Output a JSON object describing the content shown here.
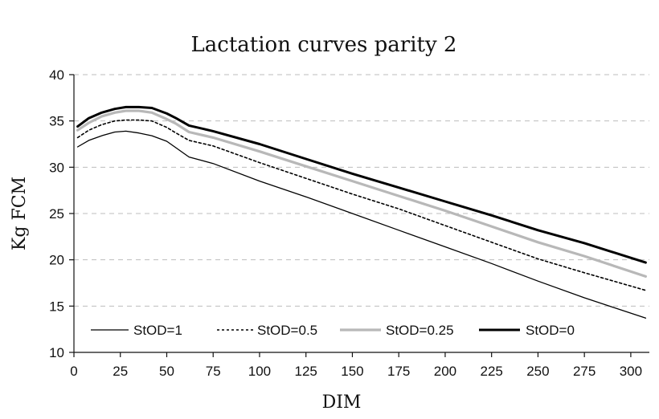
{
  "chart_data": {
    "type": "line",
    "title": "Lactation curves parity 2",
    "xlabel": "DIM",
    "ylabel": "Kg FCM",
    "xlim": [
      0,
      310
    ],
    "ylim": [
      10,
      40
    ],
    "xticks": [
      0,
      25,
      50,
      75,
      100,
      125,
      150,
      175,
      200,
      225,
      250,
      275,
      300
    ],
    "yticks": [
      10,
      15,
      20,
      25,
      30,
      35,
      40
    ],
    "grid": true,
    "legend_position": "bottom",
    "series": [
      {
        "name": "StOD=1",
        "style": "thin-solid",
        "color": "#000000",
        "x": [
          2,
          8,
          15,
          22,
          28,
          35,
          42,
          50,
          55,
          62,
          75,
          100,
          125,
          150,
          175,
          200,
          225,
          250,
          275,
          308
        ],
        "y": [
          32.2,
          32.9,
          33.4,
          33.8,
          33.9,
          33.7,
          33.4,
          32.8,
          32.1,
          31.1,
          30.4,
          28.5,
          26.8,
          25.0,
          23.2,
          21.4,
          19.6,
          17.7,
          15.9,
          13.7
        ]
      },
      {
        "name": "StOD=0.5",
        "style": "dotted",
        "color": "#000000",
        "x": [
          2,
          8,
          15,
          22,
          28,
          35,
          42,
          50,
          55,
          62,
          75,
          100,
          125,
          150,
          175,
          200,
          225,
          250,
          275,
          308
        ],
        "y": [
          33.2,
          34.0,
          34.6,
          35.0,
          35.1,
          35.1,
          35.0,
          34.3,
          33.7,
          32.9,
          32.3,
          30.5,
          28.8,
          27.1,
          25.5,
          23.7,
          21.9,
          20.1,
          18.6,
          16.7
        ]
      },
      {
        "name": "StOD=0.25",
        "style": "thick-gray",
        "color": "#b8b8b8",
        "x": [
          2,
          8,
          15,
          22,
          28,
          35,
          42,
          50,
          55,
          62,
          75,
          100,
          125,
          150,
          175,
          200,
          225,
          250,
          275,
          308
        ],
        "y": [
          34.0,
          34.8,
          35.5,
          35.9,
          36.1,
          36.1,
          35.9,
          35.2,
          34.7,
          33.8,
          33.2,
          31.7,
          30.1,
          28.5,
          26.9,
          25.3,
          23.6,
          21.9,
          20.4,
          18.2
        ]
      },
      {
        "name": "StOD=0",
        "style": "thick-black",
        "color": "#000000",
        "x": [
          2,
          8,
          15,
          22,
          28,
          35,
          42,
          50,
          55,
          62,
          75,
          100,
          125,
          150,
          175,
          200,
          225,
          250,
          275,
          308
        ],
        "y": [
          34.4,
          35.3,
          35.9,
          36.3,
          36.5,
          36.5,
          36.4,
          35.8,
          35.3,
          34.5,
          33.9,
          32.5,
          30.9,
          29.3,
          27.8,
          26.3,
          24.8,
          23.2,
          21.8,
          19.7
        ]
      }
    ]
  }
}
